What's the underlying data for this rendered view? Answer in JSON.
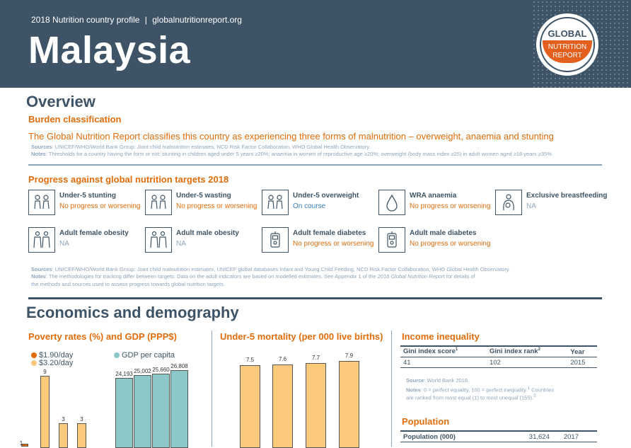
{
  "header": {
    "subtitle": "2018 Nutrition country profile",
    "divider": "|",
    "url": "globalnutritionreport.org",
    "country": "Malaysia",
    "logo_top": "GLOBAL",
    "logo_line1": "NUTRITION",
    "logo_line2": "REPORT"
  },
  "overview": {
    "heading": "Overview",
    "burden_heading": "Burden classification",
    "burden_text": "The Global Nutrition Report classifies this country as experiencing three forms of malnutrition – overweight, anaemia and stunting",
    "sources_label": "Sources",
    "sources_text": ": UNICEF/WHO/World Bank Group: Joint child malnutrition estimates, NCD Risk Factor Collaboration, WHO Global Health Observatory.",
    "notes_label": "Notes",
    "notes_text": ": Thresholds for a country having the form or not: stunting in children aged under 5 years ≥20%; anaemia in women of reproductive age ≥20%; overweight (body mass index ≥25) in adult women aged ≥18 years ≥35%."
  },
  "progress": {
    "heading": "Progress against global nutrition targets 2018",
    "targets": [
      {
        "label": "Under-5 stunting",
        "status": "No progress or worsening",
        "icon": "children-icon",
        "tone": "orange"
      },
      {
        "label": "Under-5 wasting",
        "status": "No progress or worsening",
        "icon": "children-icon",
        "tone": "orange"
      },
      {
        "label": "Under-5 overweight",
        "status": "On course",
        "icon": "children-icon",
        "tone": "blue"
      },
      {
        "label": "WRA anaemia",
        "status": "No progress or worsening",
        "icon": "blood-drop-icon",
        "tone": "orange"
      },
      {
        "label": "Exclusive breastfeeding",
        "status": "NA",
        "icon": "breastfeeding-icon",
        "tone": "grey"
      },
      {
        "label": "Adult female obesity",
        "status": "NA",
        "icon": "adults-icon",
        "tone": "grey"
      },
      {
        "label": "Adult male obesity",
        "status": "NA",
        "icon": "adults-icon",
        "tone": "grey"
      },
      {
        "label": "Adult female diabetes",
        "status": "No progress or worsening",
        "icon": "glucose-meter-icon",
        "tone": "orange"
      },
      {
        "label": "Adult male diabetes",
        "status": "No progress or worsening",
        "icon": "glucose-meter-icon",
        "tone": "orange"
      }
    ],
    "sources_label": "Sources",
    "sources_text": ": UNICEF/WHO/World Bank Group: Joint child malnutrition estimates, UNICEF global databases Infant and Young Child Feeding, NCD Risk Factor Collaboration, WHO Global Health Observatory.",
    "notes_label": "Notes",
    "notes_text_1": ": The methodologies for tracking differ between targets. Data on the adult indicators are based on modelled estimates. See Appendix 1 of the ",
    "notes_italic": "2018 Global Nutrition Report",
    "notes_text_2": " for details of",
    "notes_text_3": "the methods and sources used to assess progress towards global nutrition targets."
  },
  "economics": {
    "heading": "Economics and demography",
    "poverty_heading": "Poverty rates (%) and GDP (PPP$)",
    "mortality_heading": "Under-5 mortality (per 000 live births)",
    "income_heading": "Income inequality",
    "population_heading": "Population"
  },
  "chart_data": [
    {
      "type": "bar",
      "title": "Poverty rates (%) and GDP (PPP$)",
      "series": [
        {
          "name": "$1.90/day",
          "values": [
            1
          ],
          "color": "#e36c0a"
        },
        {
          "name": "$3.20/day",
          "values": [
            9,
            3,
            3
          ],
          "color": "#fbc97c"
        }
      ],
      "labels_poverty": [
        "1",
        "9",
        "3",
        "3"
      ]
    },
    {
      "type": "bar",
      "series": [
        {
          "name": "GDP per capita",
          "values": [
            24193,
            25002,
            25660,
            26808
          ],
          "color": "#8cc8c8"
        }
      ],
      "labels": [
        "24,193",
        "25,002",
        "25,660",
        "26,808"
      ]
    },
    {
      "type": "bar",
      "title": "Under-5 mortality (per 000 live births)",
      "values": [
        7.5,
        7.6,
        7.7,
        7.9
      ],
      "labels": [
        "7.5",
        "7.6",
        "7.7",
        "7.9"
      ],
      "color": "#fbc97c"
    }
  ],
  "income": {
    "columns": [
      "Gini index score",
      "Gini index rank",
      "Year"
    ],
    "sup1": "1",
    "sup2": "2",
    "row": [
      "41",
      "102",
      "2015"
    ],
    "source_label": "Source",
    "source_text": ": World Bank 2018.",
    "notes_label": "Notes",
    "notes_text_1": ": 0 = perfect equality, 100 = perfect inequality.",
    "notes_sup1": "1",
    "notes_text_2": " Countries",
    "notes_text_3": "are ranked from most equal (1) to most unequal (155).",
    "notes_sup2": "2"
  },
  "population": {
    "label": "Population (000)",
    "value": "31,624",
    "year": "2017"
  },
  "colors": {
    "header_bg": "#3e5466",
    "accent_orange": "#e36c0a",
    "light_orange": "#fbc97c",
    "teal": "#8cc8c8",
    "on_course_blue": "#3a7db8"
  }
}
